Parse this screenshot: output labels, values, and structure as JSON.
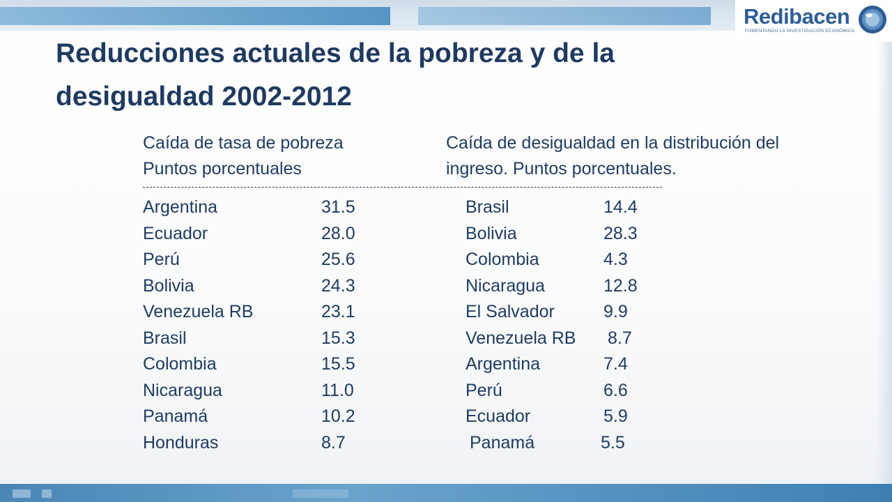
{
  "title": "Reducciones actuales de la pobreza y de la desigualdad 2002-2012",
  "logo": {
    "name": "Redibacen",
    "tagline": "FOMENTANDO LA INVESTIGACIÓN ECONÓMICA"
  },
  "left_column": {
    "heading_line1": "Caída de tasa de pobreza",
    "heading_line2": "Puntos porcentuales",
    "rows": [
      {
        "country": "Argentina",
        "value": "31.5"
      },
      {
        "country": "Ecuador",
        "value": "28.0"
      },
      {
        "country": "Perú",
        "value": "25.6"
      },
      {
        "country": "Bolivia",
        "value": "24.3"
      },
      {
        "country": "Venezuela RB",
        "value": "23.1"
      },
      {
        "country": "Brasil",
        "value": "15.3"
      },
      {
        "country": "Colombia",
        "value": "15.5"
      },
      {
        "country": "Nicaragua",
        "value": "11.0"
      },
      {
        "country": "Panamá",
        "value": "10.2"
      },
      {
        "country": "Honduras",
        "value": "8.7"
      }
    ]
  },
  "right_column": {
    "heading_line1": "Caída de desigualdad en la distribución del",
    "heading_line2": "ingreso. Puntos porcentuales.",
    "rows": [
      {
        "country": "Brasil",
        "value": "14.4"
      },
      {
        "country": "Bolivia",
        "value": "28.3"
      },
      {
        "country": "Colombia",
        "value": "4.3"
      },
      {
        "country": "Nicaragua",
        "value": "12.8"
      },
      {
        "country": "El Salvador",
        "value": "9.9"
      },
      {
        "country": "Venezuela RB",
        "value": "8.7"
      },
      {
        "country": "Argentina",
        "value": "7.4"
      },
      {
        "country": "Perú",
        "value": "6.6"
      },
      {
        "country": "Ecuador",
        "value": "5.9"
      },
      {
        "country": "Panamá",
        "value": "5.5"
      }
    ]
  },
  "colors": {
    "title": "#1f3a5f",
    "text": "#1f3a5f",
    "logo": "#2e5d95",
    "band": "#4a86b6"
  }
}
